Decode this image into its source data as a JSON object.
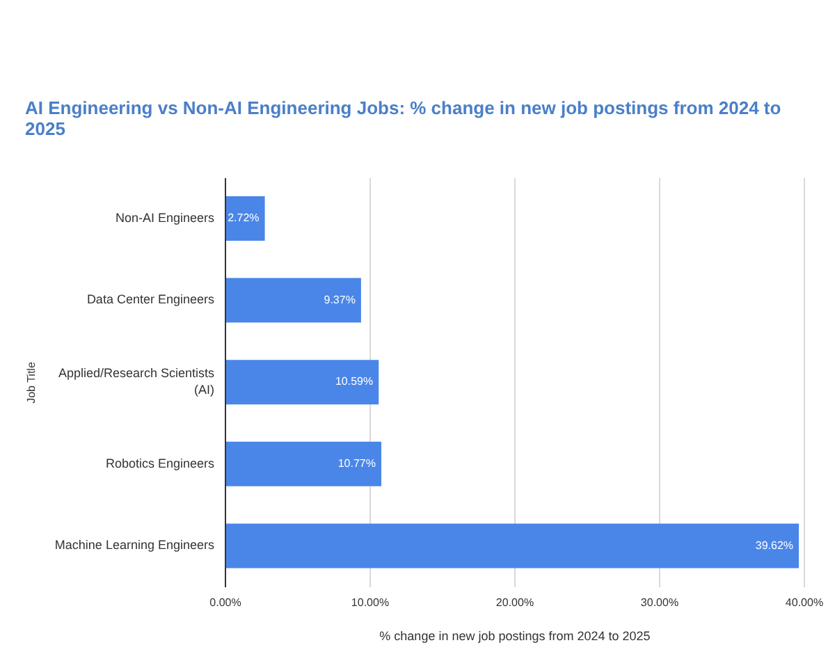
{
  "chart_data": {
    "type": "bar",
    "orientation": "horizontal",
    "title": "AI Engineering vs Non-AI Engineering Jobs: % change in new job postings from 2024 to 2025",
    "xlabel": "% change in new job postings from 2024 to 2025",
    "ylabel": "Job Title",
    "categories": [
      "Non-AI Engineers",
      "Data Center Engineers",
      "Applied/Research Scientists (AI)",
      "Robotics Engineers",
      "Machine Learning Engineers"
    ],
    "values": [
      2.72,
      9.37,
      10.59,
      10.77,
      39.62
    ],
    "value_labels": [
      "2.72%",
      "9.37%",
      "10.59%",
      "10.77%",
      "39.62%"
    ],
    "color": "#4a86e8",
    "xlim": [
      0,
      40
    ],
    "xticks": [
      {
        "value": 0,
        "label": "0.00%"
      },
      {
        "value": 10,
        "label": "10.00%"
      },
      {
        "value": 20,
        "label": "20.00%"
      },
      {
        "value": 30,
        "label": "30.00%"
      },
      {
        "value": 40,
        "label": "40.00%"
      }
    ],
    "grid": "x",
    "legend": false
  }
}
